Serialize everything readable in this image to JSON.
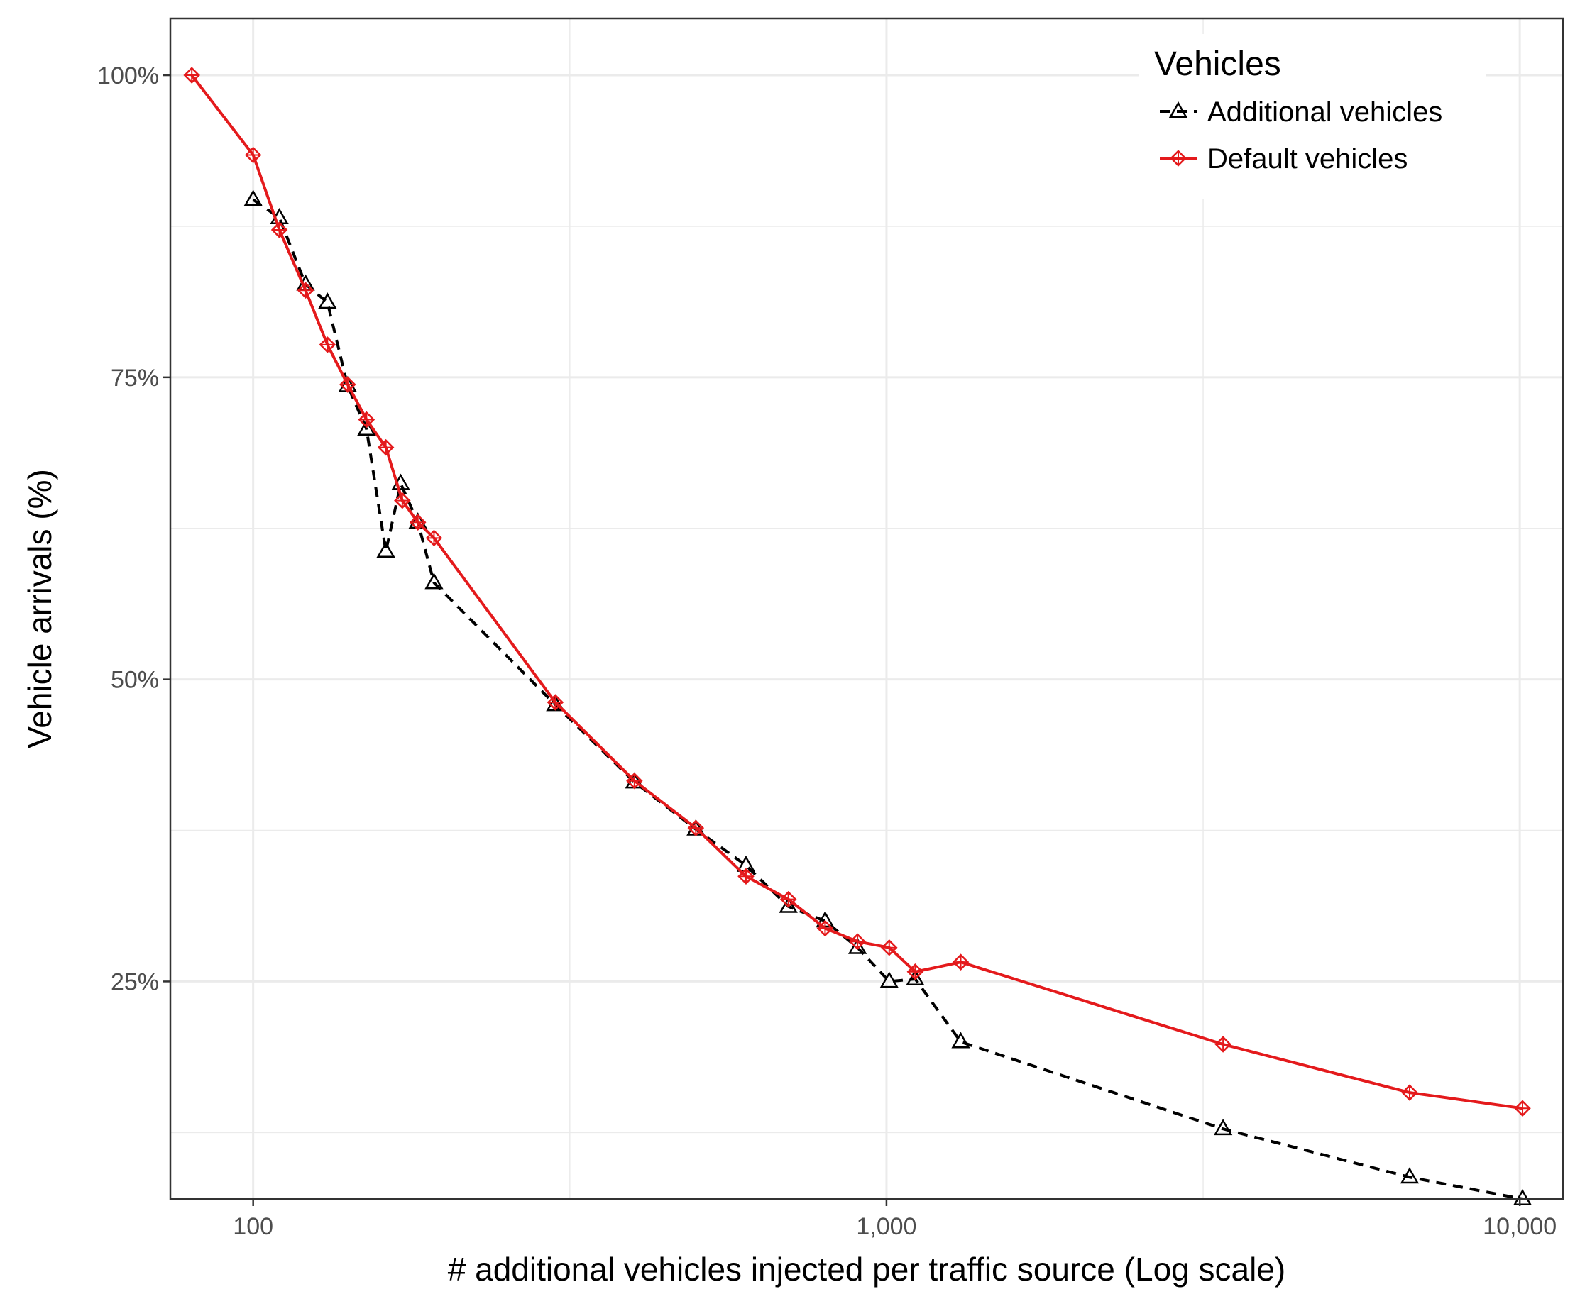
{
  "chart_data": {
    "type": "line",
    "title": "",
    "xlabel": "# additional vehicles injected per traffic source (Log scale)",
    "ylabel": "Vehicle arrivals (%)",
    "x_scale": "log10",
    "xlim": [
      74,
      11700
    ],
    "ylim": [
      0.07,
      1.047
    ],
    "x_ticks": [
      {
        "value": 100,
        "label": "100"
      },
      {
        "value": 1000,
        "label": "1,000"
      },
      {
        "value": 10000,
        "label": "10,000"
      }
    ],
    "y_ticks": [
      {
        "value": 0.25,
        "label": "25%"
      },
      {
        "value": 0.5,
        "label": "50%"
      },
      {
        "value": 0.75,
        "label": "75%"
      },
      {
        "value": 1.0,
        "label": "100%"
      }
    ],
    "grid": true,
    "legend": {
      "title": "Vehicles",
      "position": "top-right"
    },
    "series": [
      {
        "name": "Additional vehicles",
        "color": "#000000",
        "linestyle": "dashed",
        "marker": "triangle",
        "x": [
          100,
          110,
          121,
          131,
          141,
          151,
          162,
          171,
          182,
          193,
          300,
          400,
          500,
          600,
          700,
          800,
          900,
          1010,
          1110,
          1310,
          3400,
          6700,
          10100
        ],
        "y": [
          0.897,
          0.882,
          0.827,
          0.812,
          0.743,
          0.707,
          0.606,
          0.662,
          0.63,
          0.58,
          0.479,
          0.415,
          0.376,
          0.346,
          0.312,
          0.3,
          0.278,
          0.25,
          0.252,
          0.2,
          0.128,
          0.088,
          0.07
        ]
      },
      {
        "name": "Default vehicles",
        "color": "#e41a1c",
        "linestyle": "solid",
        "marker": "diamond",
        "x": [
          80,
          100,
          110,
          121,
          131,
          141,
          151,
          162,
          172,
          182,
          193,
          300,
          400,
          500,
          600,
          700,
          800,
          900,
          1010,
          1110,
          1310,
          3400,
          6700,
          10100
        ],
        "y": [
          1.0,
          0.934,
          0.872,
          0.822,
          0.777,
          0.744,
          0.715,
          0.692,
          0.648,
          0.63,
          0.617,
          0.481,
          0.416,
          0.377,
          0.337,
          0.318,
          0.294,
          0.283,
          0.278,
          0.258,
          0.266,
          0.198,
          0.158,
          0.145
        ]
      }
    ]
  }
}
